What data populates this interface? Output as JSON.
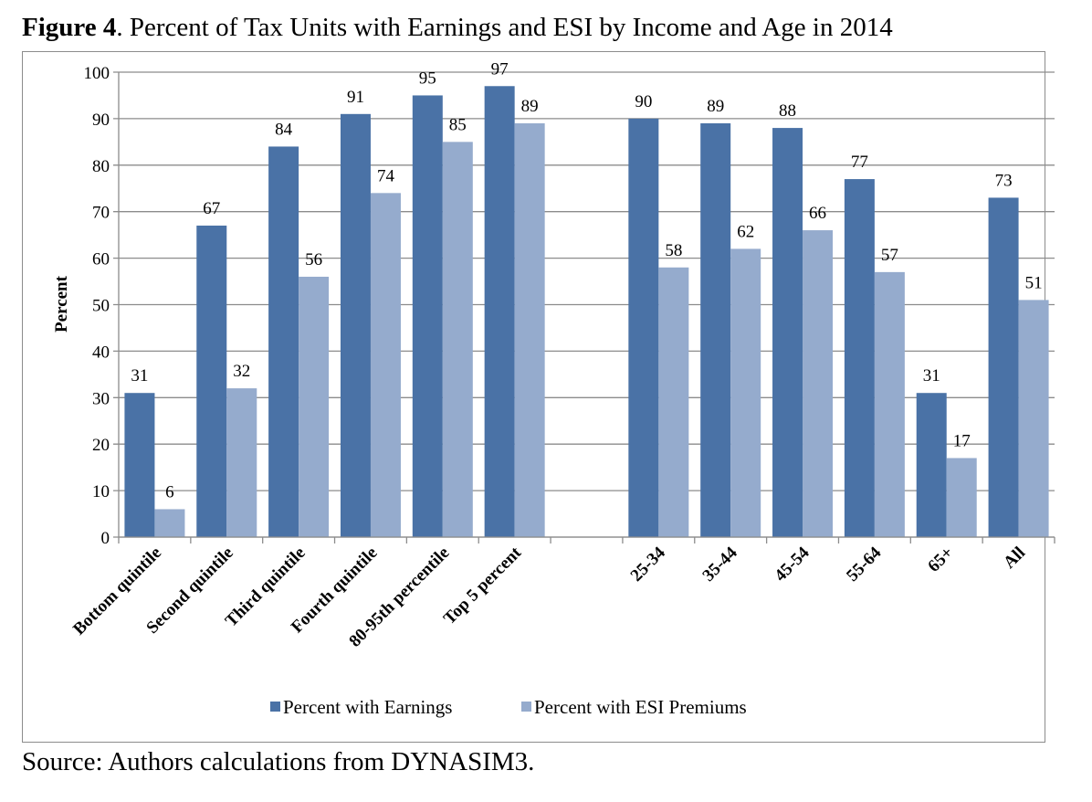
{
  "figure": {
    "label": "Figure 4",
    "title": ". Percent of Tax Units with Earnings and ESI by Income and Age in 2014",
    "source": "Source: Authors calculations from DYNASIM3."
  },
  "colors": {
    "earnings": "#4A72A6",
    "esi": "#95ABCD",
    "grid": "#8C8C8C"
  },
  "chart_data": {
    "type": "bar",
    "title": "Percent of Tax Units with Earnings and ESI by Income and Age in 2014",
    "xlabel": "",
    "ylabel": "Percent",
    "ylim": [
      0,
      100
    ],
    "yticks": [
      0,
      10,
      20,
      30,
      40,
      50,
      60,
      70,
      80,
      90,
      100
    ],
    "grid": true,
    "legend_position": "bottom",
    "categories": [
      "Bottom quintile",
      "Second quintile",
      "Third quintile",
      "Fourth quintile",
      "80-95th percentile",
      "Top 5 percent",
      "",
      "25-34",
      "35-44",
      "45-54",
      "55-64",
      "65+",
      "All"
    ],
    "series": [
      {
        "name": "Percent with Earnings",
        "values": [
          31,
          67,
          84,
          91,
          95,
          97,
          null,
          90,
          89,
          88,
          77,
          31,
          73
        ]
      },
      {
        "name": "Percent with ESI Premiums",
        "values": [
          6,
          32,
          56,
          74,
          85,
          89,
          null,
          58,
          62,
          66,
          57,
          17,
          51
        ]
      }
    ]
  }
}
